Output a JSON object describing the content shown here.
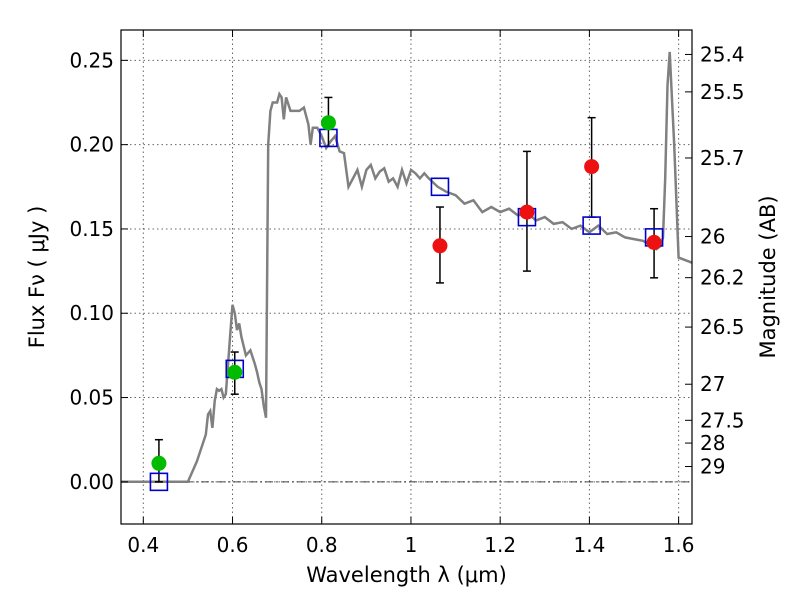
{
  "chart_data": {
    "type": "line",
    "xlabel": "Wavelength  λ (μm)",
    "ylabel": "Flux  Fν  ( μJy )",
    "ylabel_right": "Magnitude (AB)",
    "xlim": [
      0.35,
      1.63
    ],
    "ylim": [
      -0.025,
      0.268
    ],
    "grid": true,
    "x_ticks": [
      {
        "value": 0.4,
        "label": "0.4"
      },
      {
        "value": 0.6,
        "label": "0.6"
      },
      {
        "value": 0.8,
        "label": "0.8"
      },
      {
        "value": 1.0,
        "label": "1"
      },
      {
        "value": 1.2,
        "label": "1.2"
      },
      {
        "value": 1.4,
        "label": "1.4"
      },
      {
        "value": 1.6,
        "label": "1.6"
      }
    ],
    "y_ticks": [
      {
        "value": 0.0,
        "label": "0.00"
      },
      {
        "value": 0.05,
        "label": "0.05"
      },
      {
        "value": 0.1,
        "label": "0.10"
      },
      {
        "value": 0.15,
        "label": "0.15"
      },
      {
        "value": 0.2,
        "label": "0.20"
      },
      {
        "value": 0.25,
        "label": "0.25"
      }
    ],
    "mag_ticks": [
      {
        "value": 0.2535,
        "label": "25.4"
      },
      {
        "value": 0.2313,
        "label": "25.5"
      },
      {
        "value": 0.1921,
        "label": "25.7"
      },
      {
        "value": 0.1455,
        "label": "26"
      },
      {
        "value": 0.1211,
        "label": "26.2"
      },
      {
        "value": 0.0918,
        "label": "26.5"
      },
      {
        "value": 0.0579,
        "label": "27"
      },
      {
        "value": 0.0365,
        "label": "27.5"
      },
      {
        "value": 0.023,
        "label": "28"
      },
      {
        "value": 0.0091,
        "label": "29"
      }
    ],
    "colors": {
      "sed": "#808080",
      "model": "#0000cc",
      "optical": "#00bb00",
      "nir": "#ee1111",
      "errorbar": "#000000"
    },
    "sed_model": {
      "x": [
        0.35,
        0.5,
        0.52,
        0.54,
        0.545,
        0.55,
        0.555,
        0.56,
        0.565,
        0.57,
        0.575,
        0.58,
        0.585,
        0.59,
        0.595,
        0.6,
        0.605,
        0.61,
        0.615,
        0.62,
        0.63,
        0.64,
        0.645,
        0.65,
        0.655,
        0.66,
        0.665,
        0.67,
        0.675,
        0.68,
        0.685,
        0.69,
        0.7,
        0.705,
        0.71,
        0.715,
        0.72,
        0.73,
        0.74,
        0.75,
        0.76,
        0.77,
        0.775,
        0.78,
        0.79,
        0.8,
        0.81,
        0.82,
        0.83,
        0.84,
        0.85,
        0.86,
        0.87,
        0.88,
        0.89,
        0.9,
        0.91,
        0.92,
        0.93,
        0.94,
        0.95,
        0.96,
        0.97,
        0.98,
        0.99,
        1.0,
        1.01,
        1.02,
        1.03,
        1.04,
        1.06,
        1.08,
        1.1,
        1.12,
        1.14,
        1.16,
        1.18,
        1.2,
        1.22,
        1.24,
        1.26,
        1.28,
        1.3,
        1.32,
        1.34,
        1.36,
        1.38,
        1.4,
        1.42,
        1.44,
        1.46,
        1.48,
        1.5,
        1.52,
        1.54,
        1.55,
        1.56,
        1.565,
        1.57,
        1.575,
        1.58,
        1.59,
        1.6,
        1.63
      ],
      "y": [
        0.0,
        0.0,
        0.012,
        0.028,
        0.04,
        0.042,
        0.032,
        0.048,
        0.055,
        0.054,
        0.055,
        0.05,
        0.052,
        0.07,
        0.088,
        0.105,
        0.1,
        0.09,
        0.094,
        0.086,
        0.075,
        0.078,
        0.074,
        0.07,
        0.065,
        0.059,
        0.055,
        0.045,
        0.038,
        0.2,
        0.22,
        0.225,
        0.225,
        0.23,
        0.228,
        0.215,
        0.228,
        0.22,
        0.22,
        0.22,
        0.222,
        0.212,
        0.2,
        0.21,
        0.21,
        0.205,
        0.198,
        0.202,
        0.205,
        0.196,
        0.195,
        0.175,
        0.18,
        0.185,
        0.175,
        0.185,
        0.188,
        0.18,
        0.184,
        0.186,
        0.178,
        0.18,
        0.175,
        0.185,
        0.177,
        0.185,
        0.183,
        0.18,
        0.183,
        0.18,
        0.175,
        0.172,
        0.17,
        0.165,
        0.167,
        0.16,
        0.163,
        0.16,
        0.162,
        0.158,
        0.16,
        0.155,
        0.157,
        0.153,
        0.154,
        0.15,
        0.152,
        0.148,
        0.152,
        0.147,
        0.148,
        0.145,
        0.144,
        0.143,
        0.14,
        0.138,
        0.14,
        0.145,
        0.18,
        0.235,
        0.255,
        0.2,
        0.133,
        0.13
      ]
    },
    "model_points": {
      "x": [
        0.435,
        0.605,
        0.815,
        1.065,
        1.26,
        1.405,
        1.545
      ],
      "y": [
        0.0,
        0.067,
        0.204,
        0.175,
        0.157,
        0.152,
        0.145
      ]
    },
    "optical_points": {
      "x": [
        0.435,
        0.605,
        0.815
      ],
      "y": [
        0.011,
        0.065,
        0.213
      ],
      "err_low": [
        0.0,
        0.052,
        0.199
      ],
      "err_high": [
        0.025,
        0.077,
        0.228
      ]
    },
    "nir_points": {
      "x": [
        1.065,
        1.26,
        1.405,
        1.545
      ],
      "y": [
        0.14,
        0.16,
        0.187,
        0.142
      ],
      "err_low": [
        0.118,
        0.125,
        0.157,
        0.121
      ],
      "err_high": [
        0.163,
        0.196,
        0.216,
        0.162
      ]
    }
  }
}
